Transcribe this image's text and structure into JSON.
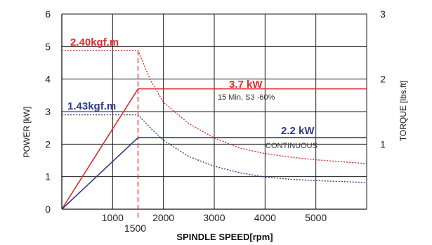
{
  "chart_data": {
    "type": "line",
    "xlabel": "SPINDLE SPEED[rpm]",
    "ylabel": "POWER [kW]",
    "ylabel_right": "TORQUE [lbs.ft]",
    "xlim": [
      0,
      6000
    ],
    "ylim": [
      0,
      6
    ],
    "ylim_right": [
      0,
      3
    ],
    "x_ticks": [
      1000,
      2000,
      3000,
      4000,
      5000
    ],
    "x_tick_labels": [
      "1000",
      "2000",
      "3000",
      "4000",
      "5000"
    ],
    "x_marker_label": "1500",
    "x_marker": 1500,
    "y_ticks": [
      0,
      1,
      2,
      3,
      4,
      5,
      6
    ],
    "y_tick_labels": [
      "0",
      "1",
      "2",
      "3",
      "4",
      "5",
      "6"
    ],
    "y_right_ticks": [
      1,
      2,
      3
    ],
    "y_right_tick_labels": [
      "1",
      "2",
      "3"
    ],
    "grid": true,
    "series": [
      {
        "style": "solid",
        "color": "#e8262a",
        "x": [
          0,
          1500,
          6000
        ],
        "y": [
          0,
          3.7,
          3.7
        ]
      },
      {
        "style": "solid",
        "color": "#2f3b8f",
        "x": [
          0,
          1500,
          6000
        ],
        "y": [
          0,
          2.2,
          2.2
        ]
      },
      {
        "style": "dotted",
        "color": "#e8262a",
        "x": [
          0,
          1500,
          1750,
          2000,
          2500,
          3000,
          3500,
          4000,
          4500,
          5000,
          5500,
          6000
        ],
        "y": [
          4.88,
          4.88,
          3.95,
          3.29,
          2.63,
          2.19,
          1.88,
          1.71,
          1.6,
          1.52,
          1.46,
          1.4
        ]
      },
      {
        "style": "dotted",
        "color": "#2f3b8f",
        "x": [
          0,
          1500,
          1750,
          2000,
          2500,
          3000,
          3500,
          4000,
          4500,
          5000,
          5500,
          6000
        ],
        "y": [
          2.9,
          2.9,
          2.49,
          2.12,
          1.62,
          1.32,
          1.12,
          0.99,
          0.92,
          0.88,
          0.85,
          0.82
        ]
      }
    ],
    "annotations": {
      "red_torque": "2.40kgf.m",
      "blue_torque": "1.43kgf.m",
      "red_power": "3.7 kW",
      "red_power_note": "15 Min, S3 -60%",
      "blue_power": "2.2 kW",
      "blue_power_note": "CONTINUOUS"
    }
  }
}
